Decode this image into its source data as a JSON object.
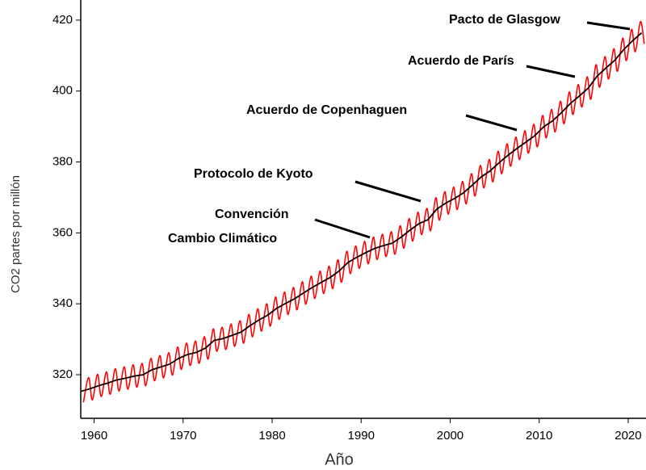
{
  "chart_data": {
    "type": "line",
    "xlabel": "Año",
    "ylabel": "CO2 partes por millón",
    "annotations": [
      "Pacto de Glasgow",
      "Acuerdo de París",
      "Acuerdo de Copenhaguen",
      "Protocolo de Kyoto",
      "Convención",
      "Cambio Climático"
    ],
    "xlim": [
      1958.5,
      2022
    ],
    "xticks": [
      1960,
      1970,
      1980,
      1990,
      2000,
      2010,
      2020
    ],
    "ylim": [
      307.7,
      423.4
    ],
    "yticks": [
      320,
      340,
      360,
      380,
      400,
      420
    ],
    "series": [
      {
        "color": "#ff0000",
        "smooth": true,
        "x": [
          1958.8,
          1959.38,
          1959.8,
          1960.38,
          1960.8,
          1961.38,
          1961.8,
          1962.38,
          1962.8,
          1963.38,
          1963.8,
          1964.38,
          1964.8,
          1965.38,
          1965.8,
          1966.38,
          1966.8,
          1967.38,
          1967.8,
          1968.38,
          1968.8,
          1969.38,
          1969.8,
          1970.38,
          1970.8,
          1971.38,
          1971.8,
          1972.38,
          1972.8,
          1973.38,
          1973.8,
          1974.38,
          1974.8,
          1975.38,
          1975.8,
          1976.38,
          1976.8,
          1977.38,
          1977.8,
          1978.38,
          1978.8,
          1979.38,
          1979.8,
          1980.38,
          1980.8,
          1981.38,
          1981.8,
          1982.38,
          1982.8,
          1983.38,
          1983.8,
          1984.38,
          1984.8,
          1985.38,
          1985.8,
          1986.38,
          1986.8,
          1987.38,
          1987.8,
          1988.38,
          1988.8,
          1989.38,
          1989.8,
          1990.38,
          1990.8,
          1991.38,
          1991.8,
          1992.38,
          1992.8,
          1993.38,
          1993.8,
          1994.38,
          1994.8,
          1995.38,
          1995.8,
          1996.38,
          1996.8,
          1997.38,
          1997.8,
          1998.38,
          1998.8,
          1999.38,
          1999.8,
          2000.38,
          2000.8,
          2001.38,
          2001.8,
          2002.38,
          2002.8,
          2003.38,
          2003.8,
          2004.38,
          2004.8,
          2005.38,
          2005.8,
          2006.38,
          2006.8,
          2007.38,
          2007.8,
          2008.38,
          2008.8,
          2009.38,
          2009.8,
          2010.38,
          2010.8,
          2011.38,
          2011.8,
          2012.38,
          2012.8,
          2013.38,
          2013.8,
          2014.38,
          2014.8,
          2015.38,
          2015.8,
          2016.38,
          2016.8,
          2017.38,
          2017.8,
          2018.38,
          2018.8,
          2019.38,
          2019.8,
          2020.38,
          2020.8,
          2021.38,
          2021.8
        ],
        "values": [
          312.2,
          319.2,
          312.9,
          320.1,
          313.8,
          320.8,
          314.5,
          321.7,
          315.4,
          322.2,
          315.9,
          322.8,
          316.5,
          323.2,
          316.9,
          324.6,
          318.3,
          325.4,
          319.1,
          326.2,
          319.9,
          327.8,
          321.5,
          328.9,
          322.6,
          329.5,
          323.2,
          330.7,
          324.4,
          332.9,
          326.6,
          333.4,
          327.1,
          334.3,
          328.0,
          335.2,
          328.9,
          337.0,
          330.7,
          338.6,
          332.3,
          340.0,
          333.7,
          341.9,
          335.6,
          343.3,
          337.0,
          344.6,
          338.3,
          346.2,
          339.9,
          347.8,
          341.5,
          349.2,
          342.9,
          350.6,
          344.3,
          352.4,
          346.1,
          354.8,
          348.5,
          356.3,
          350.0,
          357.6,
          351.3,
          358.8,
          352.5,
          359.6,
          353.3,
          360.3,
          354.0,
          362.0,
          355.7,
          364.0,
          357.7,
          365.8,
          359.5,
          366.9,
          360.6,
          369.9,
          363.6,
          371.6,
          365.3,
          372.9,
          366.6,
          374.5,
          368.2,
          376.7,
          370.4,
          379.0,
          372.7,
          380.7,
          374.4,
          383.0,
          376.7,
          385.1,
          378.8,
          387.0,
          380.7,
          388.8,
          382.5,
          390.6,
          384.3,
          393.1,
          386.8,
          394.8,
          388.5,
          397.1,
          390.8,
          399.7,
          393.4,
          401.8,
          395.5,
          404.0,
          397.7,
          407.4,
          401.1,
          409.7,
          403.4,
          411.9,
          405.6,
          414.9,
          408.6,
          417.4,
          411.1,
          419.6,
          413.3
        ]
      },
      {
        "color": "#000000",
        "smooth": false,
        "x": [
          1958.5,
          1959.5,
          1960.5,
          1961.5,
          1962.5,
          1963.5,
          1964.5,
          1965.5,
          1966.5,
          1967.5,
          1968.5,
          1969.5,
          1970.5,
          1971.5,
          1972.5,
          1973.5,
          1974.5,
          1975.5,
          1976.5,
          1977.5,
          1978.5,
          1979.5,
          1980.5,
          1981.5,
          1982.5,
          1983.5,
          1984.5,
          1985.5,
          1986.5,
          1987.5,
          1988.5,
          1989.5,
          1990.5,
          1991.5,
          1992.5,
          1993.5,
          1994.5,
          1995.5,
          1996.5,
          1997.5,
          1998.5,
          1999.5,
          2000.5,
          2001.5,
          2002.5,
          2003.5,
          2004.5,
          2005.5,
          2006.5,
          2007.5,
          2008.5,
          2009.5,
          2010.5,
          2011.5,
          2012.5,
          2013.5,
          2014.5,
          2015.5,
          2016.5,
          2017.5,
          2018.5,
          2019.5,
          2020.5,
          2021.5
        ],
        "values": [
          315.3,
          316.0,
          316.9,
          317.6,
          318.5,
          319.0,
          319.6,
          320.0,
          321.4,
          322.2,
          323.0,
          324.6,
          325.7,
          326.3,
          327.5,
          329.7,
          330.2,
          331.1,
          332.0,
          333.8,
          335.4,
          336.8,
          338.7,
          340.1,
          341.4,
          343.0,
          344.6,
          346.0,
          347.4,
          349.2,
          351.6,
          353.1,
          354.4,
          355.6,
          356.4,
          357.1,
          358.8,
          360.8,
          362.6,
          363.7,
          366.7,
          368.4,
          369.7,
          371.3,
          373.5,
          375.8,
          377.5,
          379.8,
          381.9,
          383.8,
          385.6,
          387.4,
          389.9,
          391.6,
          393.9,
          396.5,
          398.6,
          400.8,
          404.2,
          406.5,
          408.7,
          411.7,
          414.2,
          416.4
        ]
      }
    ]
  }
}
